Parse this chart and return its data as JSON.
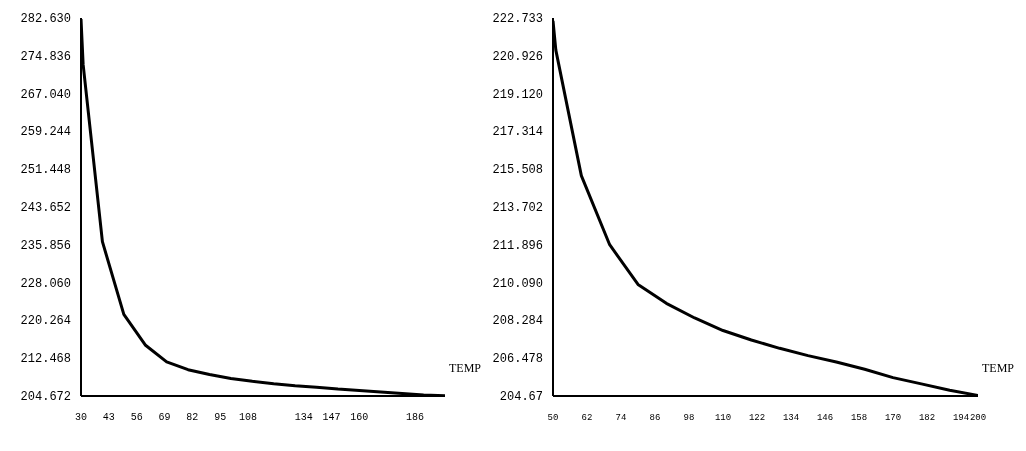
{
  "chart_data": [
    {
      "type": "line",
      "xlabel": "TEMP",
      "x": [
        30,
        31,
        40,
        50,
        60,
        70,
        80,
        90,
        100,
        110,
        120,
        130,
        140,
        150,
        160,
        170,
        180,
        190,
        200
      ],
      "series": [
        {
          "color": "#000000",
          "values": [
            282.4,
            273,
            236.5,
            221.5,
            215.2,
            211.7,
            210.1,
            209.1,
            208.3,
            207.7,
            207.2,
            206.8,
            206.5,
            206.1,
            205.8,
            205.5,
            205.2,
            204.9,
            204.7
          ]
        }
      ],
      "xlim": [
        30,
        200
      ],
      "xticks": [
        30,
        43,
        56,
        69,
        82,
        95,
        108,
        134,
        147,
        160,
        186
      ],
      "ylim": [
        204.672,
        282.63
      ],
      "yticks": [
        {
          "value": 204.672,
          "label": "204.672"
        },
        {
          "value": 212.468,
          "label": "212.468"
        },
        {
          "value": 220.264,
          "label": "220.264"
        },
        {
          "value": 228.06,
          "label": "228.060"
        },
        {
          "value": 235.856,
          "label": "235.856"
        },
        {
          "value": 243.652,
          "label": "243.652"
        },
        {
          "value": 251.448,
          "label": "251.448"
        },
        {
          "value": 259.244,
          "label": "259.244"
        },
        {
          "value": 267.04,
          "label": "267.040"
        },
        {
          "value": 274.836,
          "label": "274.836"
        },
        {
          "value": 282.63,
          "label": "282.630"
        }
      ],
      "grid": false,
      "legend": false,
      "marker": "none",
      "line_style": "solid"
    },
    {
      "type": "line",
      "xlabel": "TEMP",
      "x": [
        50,
        51,
        60,
        70,
        80,
        90,
        100,
        110,
        120,
        130,
        140,
        150,
        160,
        170,
        180,
        190,
        200
      ],
      "series": [
        {
          "color": "#000000",
          "values": [
            222.6,
            221.2,
            215.2,
            211.9,
            210.0,
            209.1,
            208.4,
            207.8,
            207.35,
            206.95,
            206.6,
            206.3,
            205.95,
            205.55,
            205.25,
            204.95,
            204.7
          ]
        }
      ],
      "xlim": [
        50,
        200
      ],
      "xticks": [
        50,
        62,
        74,
        86,
        98,
        110,
        122,
        134,
        146,
        158,
        170,
        182,
        194,
        200
      ],
      "ylim": [
        204.672,
        222.733
      ],
      "yticks": [
        {
          "value": 204.672,
          "label": "204.67"
        },
        {
          "value": 206.478,
          "label": "206.478"
        },
        {
          "value": 208.284,
          "label": "208.284"
        },
        {
          "value": 210.09,
          "label": "210.090"
        },
        {
          "value": 211.896,
          "label": "211.896"
        },
        {
          "value": 213.702,
          "label": "213.702"
        },
        {
          "value": 215.508,
          "label": "215.508"
        },
        {
          "value": 217.314,
          "label": "217.314"
        },
        {
          "value": 219.12,
          "label": "219.120"
        },
        {
          "value": 220.926,
          "label": "220.926"
        },
        {
          "value": 222.733,
          "label": "222.733"
        }
      ],
      "grid": false,
      "legend": false,
      "marker": "none",
      "line_style": "solid"
    }
  ]
}
